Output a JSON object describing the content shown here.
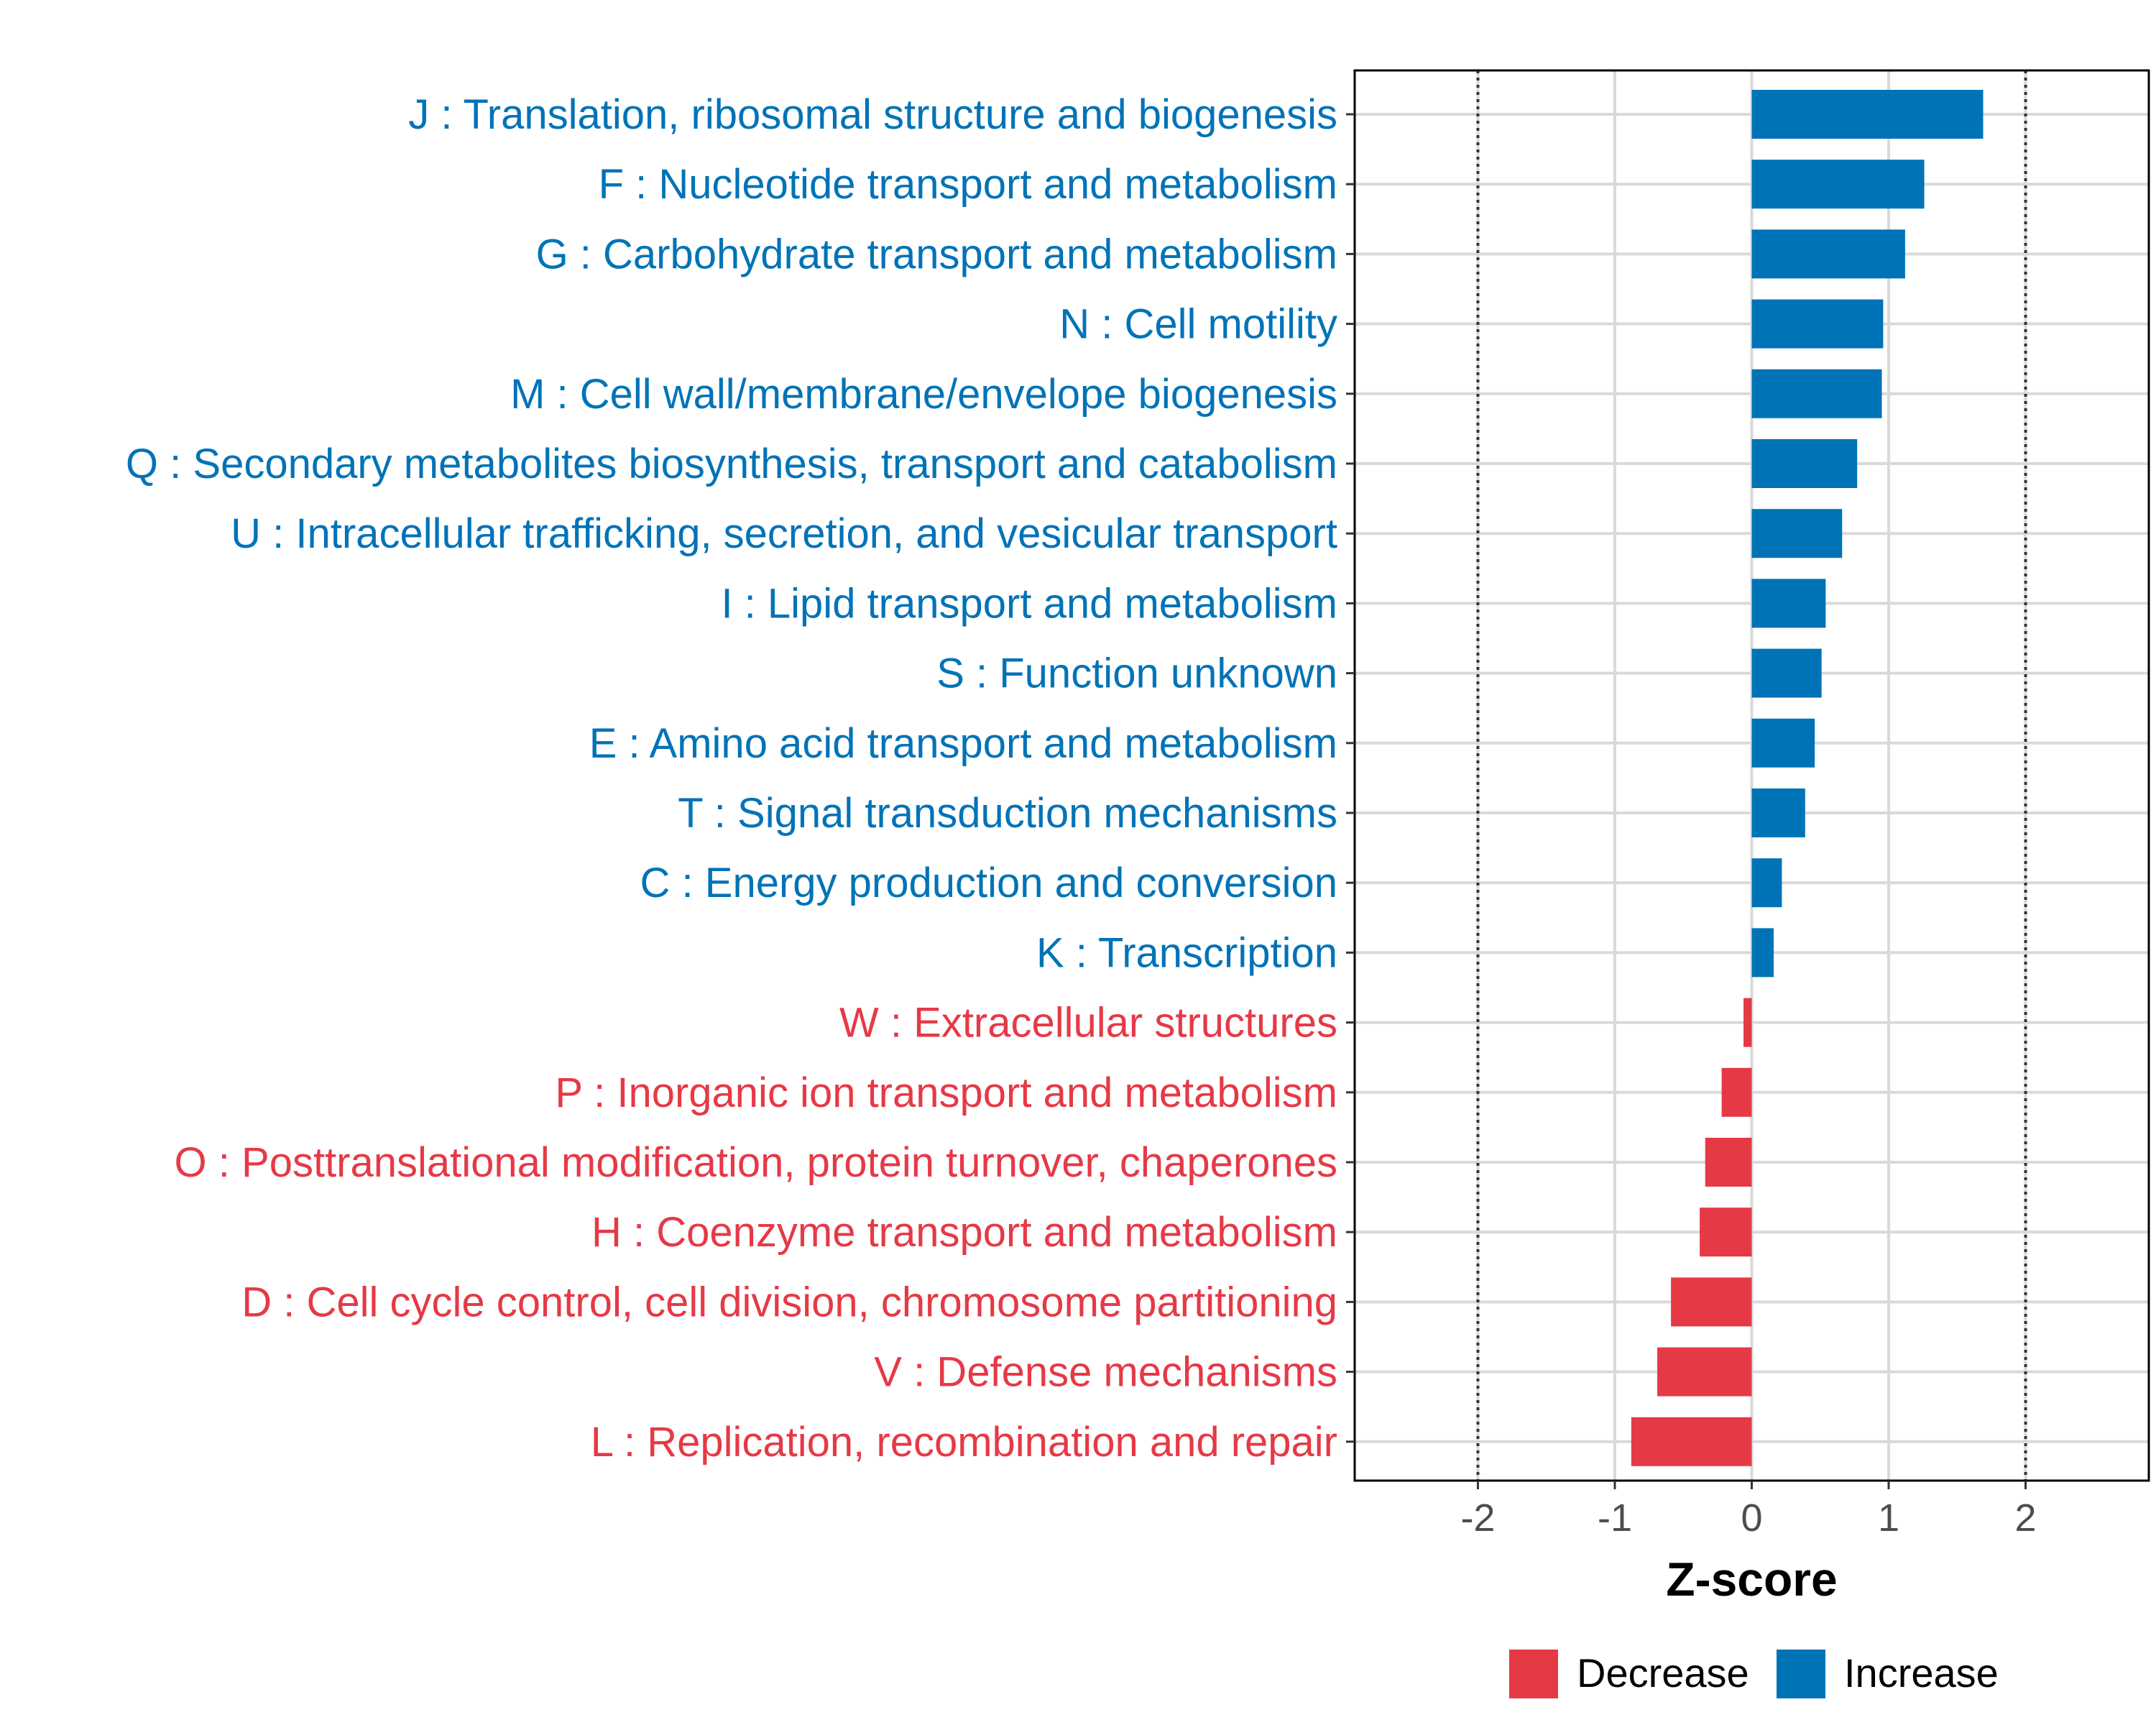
{
  "chart_data": {
    "type": "bar",
    "orientation": "horizontal",
    "xlabel": "Z-score",
    "ylabel": "",
    "xlim": [
      -2.9,
      2.9
    ],
    "x_ticks": [
      -2,
      -1,
      0,
      1,
      2
    ],
    "x_tick_labels": [
      "-2",
      "-1",
      "0",
      "1",
      "2"
    ],
    "reference_lines": [
      -2,
      2
    ],
    "grid": true,
    "categories": [
      "J : Translation, ribosomal structure and biogenesis",
      "F : Nucleotide transport and metabolism",
      "G : Carbohydrate transport and metabolism",
      "N : Cell motility",
      "M : Cell wall/membrane/envelope biogenesis",
      "Q : Secondary metabolites biosynthesis, transport and catabolism",
      "U : Intracellular trafficking, secretion, and vesicular transport",
      "I : Lipid transport and metabolism",
      "S : Function unknown",
      "E : Amino acid transport and metabolism",
      "T : Signal transduction mechanisms",
      "C : Energy production and conversion",
      "K : Transcription",
      "W : Extracellular structures",
      "P : Inorganic ion transport and metabolism",
      "O : Posttranslational modification, protein turnover, chaperones",
      "H : Coenzyme transport and metabolism",
      "D : Cell cycle control, cell division, chromosome partitioning",
      "V : Defense mechanisms",
      "L : Replication, recombination and repair"
    ],
    "values": [
      1.69,
      1.26,
      1.12,
      0.96,
      0.95,
      0.77,
      0.66,
      0.54,
      0.51,
      0.46,
      0.39,
      0.22,
      0.16,
      -0.06,
      -0.22,
      -0.34,
      -0.38,
      -0.59,
      -0.69,
      -0.88
    ],
    "groups": [
      "Increase",
      "Increase",
      "Increase",
      "Increase",
      "Increase",
      "Increase",
      "Increase",
      "Increase",
      "Increase",
      "Increase",
      "Increase",
      "Increase",
      "Increase",
      "Decrease",
      "Decrease",
      "Decrease",
      "Decrease",
      "Decrease",
      "Decrease",
      "Decrease"
    ],
    "legend": {
      "position": "bottom",
      "entries": [
        {
          "label": "Decrease",
          "color": "#e63946"
        },
        {
          "label": "Increase",
          "color": "#0073b7"
        }
      ]
    },
    "colors": {
      "Increase": "#0073b7",
      "Decrease": "#e63946"
    }
  }
}
